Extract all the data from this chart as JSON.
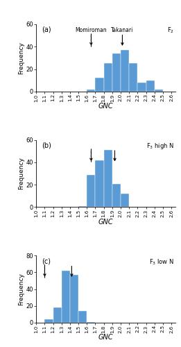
{
  "panel_a": {
    "label": "(a)",
    "tag": "F$_2$",
    "bin_edges": [
      1.0,
      1.1,
      1.2,
      1.3,
      1.4,
      1.5,
      1.6,
      1.7,
      1.8,
      1.9,
      2.0,
      2.1,
      2.2,
      2.3,
      2.4,
      2.5,
      2.6
    ],
    "frequencies": [
      0,
      0,
      0,
      0,
      0,
      0,
      2,
      12,
      25,
      34,
      37,
      25,
      8,
      10,
      2,
      0
    ],
    "ylim": [
      0,
      60
    ],
    "yticks": [
      0,
      20,
      40,
      60
    ],
    "arrow_momiroman": 1.65,
    "arrow_takanari": 2.02,
    "show_top_labels": true
  },
  "panel_b": {
    "label": "(b)",
    "tag": "F$_3$ high N",
    "bin_edges": [
      1.0,
      1.1,
      1.2,
      1.3,
      1.4,
      1.5,
      1.6,
      1.7,
      1.8,
      1.9,
      2.0,
      2.1,
      2.2,
      2.3,
      2.4,
      2.5,
      2.6
    ],
    "frequencies": [
      0,
      0,
      0,
      0,
      0,
      1,
      29,
      42,
      51,
      21,
      12,
      0,
      0,
      0,
      0,
      0
    ],
    "ylim": [
      0,
      60
    ],
    "yticks": [
      0,
      20,
      40,
      60
    ],
    "arrow_momiroman": 1.65,
    "arrow_takanari": 1.93,
    "show_top_labels": false
  },
  "panel_c": {
    "label": "(c)",
    "tag": "F$_3$ low N",
    "bin_edges": [
      1.0,
      1.1,
      1.2,
      1.3,
      1.4,
      1.5,
      1.6,
      1.7,
      1.8,
      1.9,
      2.0,
      2.1,
      2.2,
      2.3,
      2.4,
      2.5,
      2.6
    ],
    "frequencies": [
      0,
      4,
      18,
      62,
      57,
      14,
      1,
      0,
      0,
      0,
      0,
      0,
      0,
      0,
      0,
      0
    ],
    "ylim": [
      0,
      80
    ],
    "yticks": [
      0,
      20,
      40,
      60,
      80
    ],
    "arrow_momiroman": 1.1,
    "arrow_takanari": 1.42,
    "show_top_labels": false
  },
  "bar_color": "#5b9bd5",
  "xlabel": "GNC",
  "ylabel": "Frequency",
  "label_momiroman": "Momiroman",
  "label_takanari": "Takanari"
}
